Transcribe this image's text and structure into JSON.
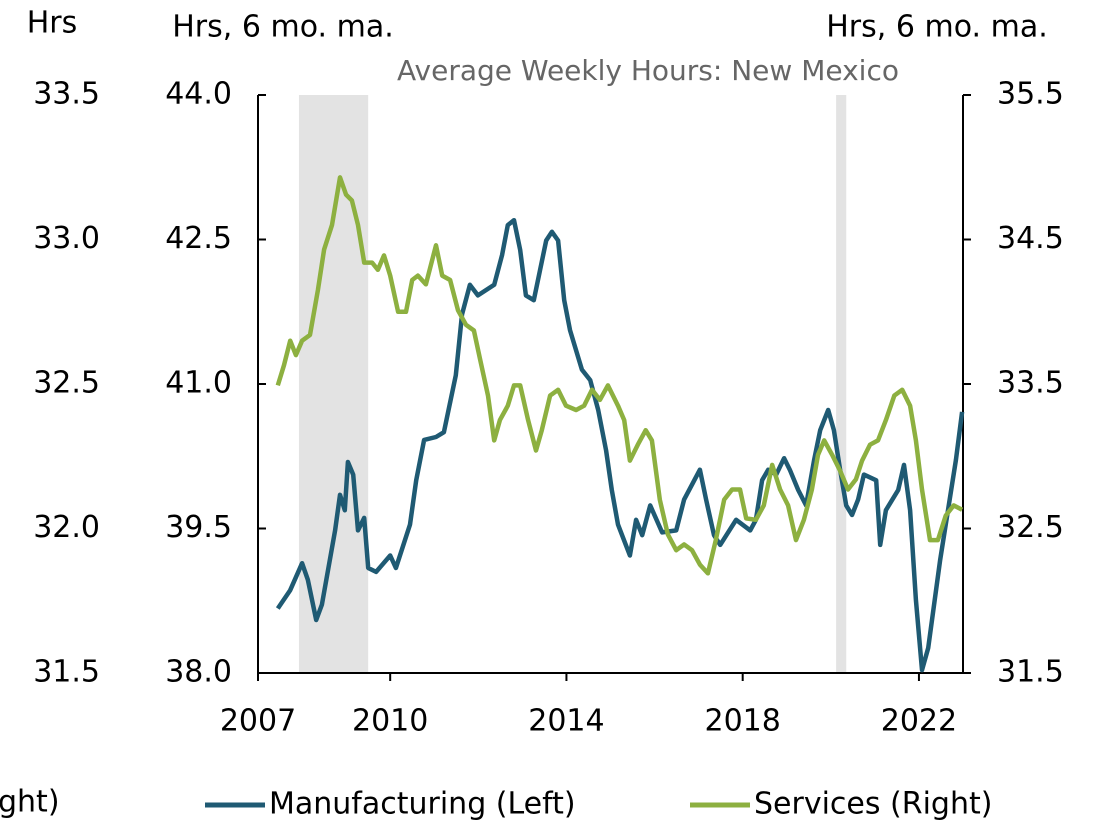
{
  "chart_data": {
    "type": "line",
    "title": "Average Weekly Hours: New Mexico",
    "y3label": "Hrs",
    "ylabel": "Hrs, 6 mo. ma.",
    "y2label": "Hrs, 6 mo. ma.",
    "legend_fragment": "ght)",
    "xlim": [
      2007,
      2023
    ],
    "xticks": [
      2007,
      2010,
      2014,
      2018,
      2022
    ],
    "ylim": [
      38.0,
      44.0
    ],
    "yticks": [
      {
        "value": 38,
        "label": "38.0"
      },
      39.5,
      {
        "value": 41,
        "label": "41.0"
      },
      42.5,
      {
        "value": 44,
        "label": "44.0"
      }
    ],
    "y2lim": [
      31.5,
      35.5
    ],
    "y2ticks": [
      31.5,
      32.5,
      33.5,
      34.5,
      35.5
    ],
    "y3lim": [
      31.5,
      33.5
    ],
    "y3ticks": [
      31.5,
      {
        "value": 32,
        "label": "32.0"
      },
      32.5,
      {
        "value": 33,
        "label": "33.0"
      },
      33.5
    ],
    "shaded_ranges": [
      [
        2007.93,
        2009.5
      ],
      [
        2020.12,
        2020.35
      ]
    ],
    "shade_color": "#e3e3e3",
    "legend": "bottom",
    "series": [
      {
        "name": "Manufacturing (Left)",
        "color": "#1f5a73",
        "axis": "y",
        "x": [
          2007.45,
          2007.73,
          2008.0,
          2008.13,
          2008.32,
          2008.45,
          2008.75,
          2008.86,
          2008.97,
          2009.04,
          2009.16,
          2009.27,
          2009.41,
          2009.5,
          2009.68,
          2010.0,
          2010.13,
          2010.45,
          2010.59,
          2010.77,
          2011.04,
          2011.22,
          2011.49,
          2011.63,
          2011.81,
          2011.99,
          2012.36,
          2012.54,
          2012.67,
          2012.81,
          2012.95,
          2013.08,
          2013.26,
          2013.4,
          2013.54,
          2013.67,
          2013.81,
          2013.95,
          2014.08,
          2014.35,
          2014.54,
          2014.72,
          2014.9,
          2015.03,
          2015.17,
          2015.44,
          2015.58,
          2015.72,
          2015.9,
          2016.17,
          2016.49,
          2016.67,
          2017.03,
          2017.17,
          2017.35,
          2017.49,
          2017.85,
          2018.17,
          2018.3,
          2018.44,
          2018.58,
          2018.76,
          2018.94,
          2019.07,
          2019.26,
          2019.44,
          2019.62,
          2019.76,
          2019.94,
          2020.07,
          2020.21,
          2020.35,
          2020.48,
          2020.62,
          2020.75,
          2021.03,
          2021.12,
          2021.25,
          2021.53,
          2021.66,
          2021.8,
          2021.93,
          2022.07,
          2022.21,
          2022.48,
          2022.84,
          2022.98
        ],
        "values": [
          38.67,
          38.86,
          39.14,
          38.97,
          38.55,
          38.71,
          39.48,
          39.85,
          39.69,
          40.19,
          40.06,
          39.48,
          39.61,
          39.09,
          39.05,
          39.22,
          39.09,
          39.54,
          40.0,
          40.42,
          40.45,
          40.5,
          41.09,
          41.72,
          42.03,
          41.92,
          42.03,
          42.34,
          42.65,
          42.7,
          42.39,
          41.92,
          41.87,
          42.18,
          42.49,
          42.58,
          42.49,
          41.87,
          41.56,
          41.15,
          41.04,
          40.73,
          40.31,
          39.9,
          39.54,
          39.22,
          39.59,
          39.43,
          39.74,
          39.46,
          39.48,
          39.8,
          40.11,
          39.8,
          39.43,
          39.33,
          39.59,
          39.48,
          39.59,
          40.0,
          40.11,
          40.06,
          40.23,
          40.11,
          39.9,
          39.74,
          40.21,
          40.52,
          40.73,
          40.52,
          40.11,
          39.74,
          39.64,
          39.8,
          40.06,
          40.0,
          39.33,
          39.69,
          39.9,
          40.16,
          39.69,
          38.76,
          38.03,
          38.26,
          39.17,
          40.21,
          40.71
        ]
      },
      {
        "name": "Services (Right)",
        "color": "#8db040",
        "axis": "y2",
        "x": [
          2007.45,
          2007.59,
          2007.73,
          2007.86,
          2008.0,
          2008.18,
          2008.36,
          2008.5,
          2008.68,
          2008.86,
          2009.0,
          2009.13,
          2009.27,
          2009.41,
          2009.59,
          2009.72,
          2009.86,
          2010.0,
          2010.18,
          2010.36,
          2010.5,
          2010.63,
          2010.81,
          2011.04,
          2011.18,
          2011.36,
          2011.54,
          2011.72,
          2011.9,
          2012.04,
          2012.22,
          2012.36,
          2012.49,
          2012.67,
          2012.81,
          2012.95,
          2013.13,
          2013.31,
          2013.44,
          2013.63,
          2013.81,
          2013.99,
          2014.22,
          2014.4,
          2014.58,
          2014.76,
          2014.94,
          2015.17,
          2015.31,
          2015.44,
          2015.62,
          2015.8,
          2015.94,
          2016.12,
          2016.3,
          2016.49,
          2016.67,
          2016.85,
          2017.03,
          2017.21,
          2017.39,
          2017.58,
          2017.76,
          2017.94,
          2018.08,
          2018.3,
          2018.48,
          2018.67,
          2018.85,
          2019.03,
          2019.21,
          2019.39,
          2019.57,
          2019.71,
          2019.85,
          2020.03,
          2020.21,
          2020.39,
          2020.57,
          2020.71,
          2020.89,
          2021.07,
          2021.25,
          2021.44,
          2021.62,
          2021.8,
          2021.93,
          2022.07,
          2022.25,
          2022.43,
          2022.61,
          2022.79,
          2022.98
        ],
        "values": [
          33.49,
          33.63,
          33.8,
          33.7,
          33.8,
          33.84,
          34.15,
          34.43,
          34.6,
          34.93,
          34.81,
          34.77,
          34.6,
          34.34,
          34.34,
          34.29,
          34.39,
          34.25,
          34.0,
          34.0,
          34.22,
          34.25,
          34.19,
          34.46,
          34.25,
          34.22,
          34.01,
          33.91,
          33.87,
          33.67,
          33.42,
          33.11,
          33.25,
          33.35,
          33.49,
          33.49,
          33.25,
          33.04,
          33.18,
          33.42,
          33.46,
          33.35,
          33.32,
          33.35,
          33.46,
          33.39,
          33.49,
          33.35,
          33.25,
          32.97,
          33.08,
          33.18,
          33.11,
          32.7,
          32.46,
          32.35,
          32.39,
          32.35,
          32.25,
          32.19,
          32.42,
          32.7,
          32.77,
          32.77,
          32.57,
          32.56,
          32.66,
          32.94,
          32.77,
          32.66,
          32.42,
          32.56,
          32.77,
          33.01,
          33.11,
          33.01,
          32.9,
          32.77,
          32.84,
          32.97,
          33.08,
          33.11,
          33.25,
          33.42,
          33.46,
          33.35,
          33.11,
          32.77,
          32.42,
          32.42,
          32.59,
          32.66,
          32.63
        ]
      }
    ]
  }
}
